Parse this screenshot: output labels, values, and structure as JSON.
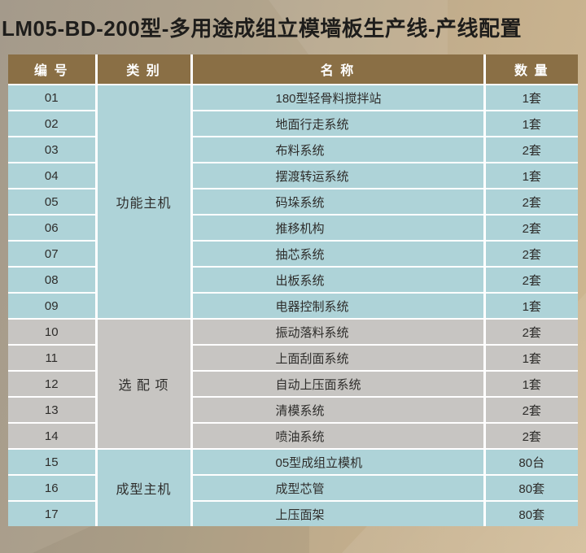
{
  "page_title": "LM05-BD-200型-多用途成组立模墙板生产线-产线配置",
  "table": {
    "headers": [
      "编 号",
      "类 别",
      "名 称",
      "数 量"
    ],
    "groups": [
      {
        "category": "功能主机",
        "tone": "blue",
        "rows": [
          {
            "no": "01",
            "name": "180型轻骨料搅拌站",
            "qty": "1套"
          },
          {
            "no": "02",
            "name": "地面行走系统",
            "qty": "1套"
          },
          {
            "no": "03",
            "name": "布料系统",
            "qty": "2套"
          },
          {
            "no": "04",
            "name": "摆渡转运系统",
            "qty": "1套"
          },
          {
            "no": "05",
            "name": "码垛系统",
            "qty": "2套"
          },
          {
            "no": "06",
            "name": "推移机构",
            "qty": "2套"
          },
          {
            "no": "07",
            "name": "抽芯系统",
            "qty": "2套"
          },
          {
            "no": "08",
            "name": "出板系统",
            "qty": "2套"
          },
          {
            "no": "09",
            "name": "电器控制系统",
            "qty": "1套"
          }
        ]
      },
      {
        "category": "选 配 项",
        "tone": "gray",
        "rows": [
          {
            "no": "10",
            "name": "振动落料系统",
            "qty": "2套"
          },
          {
            "no": "11",
            "name": "上面刮面系统",
            "qty": "1套"
          },
          {
            "no": "12",
            "name": "自动上压面系统",
            "qty": "1套"
          },
          {
            "no": "13",
            "name": "清模系统",
            "qty": "2套"
          },
          {
            "no": "14",
            "name": "喷油系统",
            "qty": "2套"
          }
        ]
      },
      {
        "category": "成型主机",
        "tone": "blue",
        "rows": [
          {
            "no": "15",
            "name": "05型成组立模机",
            "qty": "80台"
          },
          {
            "no": "16",
            "name": "成型芯管",
            "qty": "80套"
          },
          {
            "no": "17",
            "name": "上压面架",
            "qty": "80套"
          }
        ]
      }
    ]
  },
  "colors": {
    "header_bg": "#8a6f45",
    "header_text": "#ffffff",
    "row_blue": "#aed3d8",
    "row_gray": "#c7c5c2",
    "divider": "#ffffff",
    "title_text": "#1e1d1b",
    "cell_text": "#2e2d2b"
  }
}
